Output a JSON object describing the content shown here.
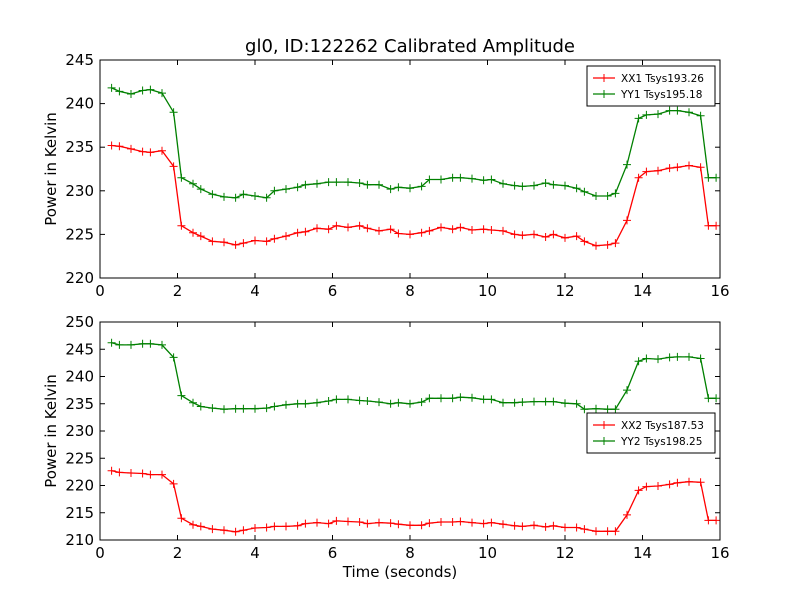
{
  "figure": {
    "title": "gl0, ID:122262 Calibrated Amplitude"
  },
  "colors": {
    "xx": "#ff0000",
    "yy": "#008000",
    "axes": "#000000",
    "background": "#ffffff"
  },
  "chart_data": [
    {
      "type": "line",
      "title": "gl0, ID:122262 Calibrated Amplitude",
      "xlabel": "",
      "ylabel": "Power in Kelvin",
      "xlim": [
        0,
        16
      ],
      "ylim": [
        220,
        245
      ],
      "xticks": [
        0,
        2,
        4,
        6,
        8,
        10,
        12,
        14,
        16
      ],
      "yticks": [
        220,
        225,
        230,
        235,
        240,
        245
      ],
      "grid": false,
      "legend_position": "top-right",
      "x": [
        0.3,
        0.5,
        0.8,
        1.1,
        1.3,
        1.6,
        1.9,
        2.1,
        2.4,
        2.6,
        2.9,
        3.2,
        3.5,
        3.7,
        4.0,
        4.3,
        4.5,
        4.8,
        5.1,
        5.3,
        5.6,
        5.9,
        6.1,
        6.4,
        6.7,
        6.9,
        7.2,
        7.5,
        7.7,
        8.0,
        8.3,
        8.5,
        8.8,
        9.1,
        9.3,
        9.6,
        9.9,
        10.1,
        10.4,
        10.7,
        10.9,
        11.2,
        11.5,
        11.7,
        12.0,
        12.3,
        12.5,
        12.8,
        13.1,
        13.3,
        13.6,
        13.9,
        14.1,
        14.4,
        14.7,
        14.9,
        15.2,
        15.5,
        15.7,
        15.9
      ],
      "series": [
        {
          "name": "XX1 Tsys193.26",
          "color": "#ff0000",
          "values": [
            235.2,
            235.1,
            234.8,
            234.5,
            234.4,
            234.6,
            232.8,
            226.0,
            225.2,
            224.8,
            224.2,
            224.1,
            223.8,
            224.0,
            224.3,
            224.2,
            224.5,
            224.8,
            225.2,
            225.3,
            225.7,
            225.6,
            226.0,
            225.8,
            226.0,
            225.7,
            225.4,
            225.6,
            225.1,
            225.0,
            225.2,
            225.4,
            225.8,
            225.6,
            225.8,
            225.5,
            225.6,
            225.5,
            225.4,
            225.0,
            224.9,
            225.0,
            224.7,
            225.0,
            224.6,
            224.8,
            224.2,
            223.7,
            223.8,
            224.0,
            226.6,
            231.5,
            232.2,
            232.3,
            232.6,
            232.7,
            232.9,
            232.7,
            226.0,
            226.0
          ]
        },
        {
          "name": "YY1 Tsys195.18",
          "color": "#008000",
          "values": [
            241.8,
            241.4,
            241.1,
            241.5,
            241.6,
            241.2,
            239.0,
            231.5,
            230.8,
            230.2,
            229.6,
            229.3,
            229.2,
            229.6,
            229.4,
            229.2,
            230.0,
            230.2,
            230.4,
            230.7,
            230.8,
            231.0,
            231.0,
            231.0,
            230.9,
            230.7,
            230.7,
            230.2,
            230.4,
            230.3,
            230.5,
            231.3,
            231.3,
            231.5,
            231.5,
            231.4,
            231.2,
            231.3,
            230.8,
            230.6,
            230.5,
            230.6,
            230.9,
            230.7,
            230.6,
            230.3,
            229.9,
            229.4,
            229.4,
            229.7,
            233.0,
            238.3,
            238.7,
            238.8,
            239.2,
            239.2,
            239.0,
            238.6,
            231.5,
            231.5
          ]
        }
      ]
    },
    {
      "type": "line",
      "title": "",
      "xlabel": "Time (seconds)",
      "ylabel": "Power in Kelvin",
      "xlim": [
        0,
        16
      ],
      "ylim": [
        210,
        250
      ],
      "xticks": [
        0,
        2,
        4,
        6,
        8,
        10,
        12,
        14,
        16
      ],
      "yticks": [
        210,
        215,
        220,
        225,
        230,
        235,
        240,
        245,
        250
      ],
      "grid": false,
      "legend_position": "center-right",
      "x": [
        0.3,
        0.5,
        0.8,
        1.1,
        1.3,
        1.6,
        1.9,
        2.1,
        2.4,
        2.6,
        2.9,
        3.2,
        3.5,
        3.7,
        4.0,
        4.3,
        4.5,
        4.8,
        5.1,
        5.3,
        5.6,
        5.9,
        6.1,
        6.4,
        6.7,
        6.9,
        7.2,
        7.5,
        7.7,
        8.0,
        8.3,
        8.5,
        8.8,
        9.1,
        9.3,
        9.6,
        9.9,
        10.1,
        10.4,
        10.7,
        10.9,
        11.2,
        11.5,
        11.7,
        12.0,
        12.3,
        12.5,
        12.8,
        13.1,
        13.3,
        13.6,
        13.9,
        14.1,
        14.4,
        14.7,
        14.9,
        15.2,
        15.5,
        15.7,
        15.9
      ],
      "series": [
        {
          "name": "XX2 Tsys187.53",
          "color": "#ff0000",
          "values": [
            222.7,
            222.4,
            222.3,
            222.2,
            222.0,
            222.0,
            220.3,
            214.0,
            212.8,
            212.5,
            212.0,
            211.8,
            211.5,
            211.8,
            212.2,
            212.3,
            212.5,
            212.5,
            212.6,
            213.0,
            213.2,
            213.0,
            213.5,
            213.4,
            213.3,
            213.0,
            213.2,
            213.1,
            212.9,
            212.7,
            212.7,
            213.1,
            213.3,
            213.3,
            213.4,
            213.2,
            213.0,
            213.2,
            212.9,
            212.6,
            212.5,
            212.7,
            212.4,
            212.6,
            212.3,
            212.3,
            212.0,
            211.6,
            211.6,
            211.6,
            214.6,
            219.1,
            219.8,
            219.9,
            220.2,
            220.5,
            220.7,
            220.6,
            213.6,
            213.6
          ]
        },
        {
          "name": "YY2 Tsys198.25",
          "color": "#008000",
          "values": [
            246.2,
            245.8,
            245.8,
            246.0,
            246.0,
            245.8,
            243.5,
            236.5,
            235.2,
            234.5,
            234.2,
            234.0,
            234.1,
            234.1,
            234.1,
            234.2,
            234.5,
            234.8,
            235.0,
            235.0,
            235.2,
            235.5,
            235.8,
            235.8,
            235.6,
            235.5,
            235.3,
            235.0,
            235.2,
            235.0,
            235.3,
            236.0,
            236.0,
            236.0,
            236.2,
            236.1,
            235.8,
            235.8,
            235.2,
            235.2,
            235.3,
            235.4,
            235.4,
            235.4,
            235.1,
            235.0,
            234.0,
            234.1,
            234.0,
            234.0,
            237.5,
            242.8,
            243.3,
            243.2,
            243.5,
            243.6,
            243.6,
            243.3,
            236.0,
            236.0
          ]
        }
      ]
    }
  ]
}
